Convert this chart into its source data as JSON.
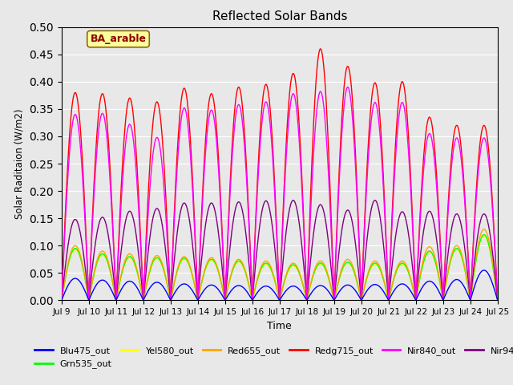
{
  "title": "Reflected Solar Bands",
  "xlabel": "Time",
  "ylabel": "Solar Raditaion (W/m2)",
  "annotation": "BA_arable",
  "annotation_color": "#8B0000",
  "annotation_bg": "#FFFF99",
  "annotation_border": "#8B6914",
  "ylim": [
    0,
    0.5
  ],
  "yticks": [
    0.0,
    0.05,
    0.1,
    0.15,
    0.2,
    0.25,
    0.3,
    0.35,
    0.4,
    0.45,
    0.5
  ],
  "bg_color": "#E8E8E8",
  "grid_color": "white",
  "n_days": 16,
  "start_day": 9,
  "points_per_day": 200,
  "day_peaks_blu": [
    0.04,
    0.037,
    0.035,
    0.033,
    0.03,
    0.028,
    0.027,
    0.026,
    0.026,
    0.027,
    0.028,
    0.029,
    0.03,
    0.035,
    0.038,
    0.055
  ],
  "day_peaks_grn": [
    0.095,
    0.085,
    0.08,
    0.078,
    0.077,
    0.075,
    0.072,
    0.068,
    0.065,
    0.068,
    0.07,
    0.068,
    0.068,
    0.09,
    0.095,
    0.12
  ],
  "day_peaks_yel": [
    0.093,
    0.083,
    0.078,
    0.076,
    0.075,
    0.073,
    0.07,
    0.066,
    0.063,
    0.066,
    0.068,
    0.066,
    0.066,
    0.088,
    0.093,
    0.118
  ],
  "day_peaks_red": [
    0.1,
    0.09,
    0.085,
    0.082,
    0.08,
    0.078,
    0.075,
    0.072,
    0.068,
    0.072,
    0.075,
    0.072,
    0.072,
    0.098,
    0.1,
    0.13
  ],
  "day_peaks_redg": [
    0.38,
    0.378,
    0.37,
    0.363,
    0.388,
    0.378,
    0.39,
    0.395,
    0.415,
    0.46,
    0.428,
    0.398,
    0.4,
    0.335,
    0.32,
    0.32
  ],
  "day_peaks_nir840": [
    0.34,
    0.342,
    0.322,
    0.298,
    0.352,
    0.348,
    0.358,
    0.363,
    0.378,
    0.382,
    0.39,
    0.362,
    0.362,
    0.305,
    0.297,
    0.297
  ],
  "day_peaks_nir945": [
    0.148,
    0.152,
    0.163,
    0.168,
    0.178,
    0.178,
    0.18,
    0.182,
    0.183,
    0.175,
    0.165,
    0.183,
    0.162,
    0.163,
    0.158,
    0.158
  ]
}
